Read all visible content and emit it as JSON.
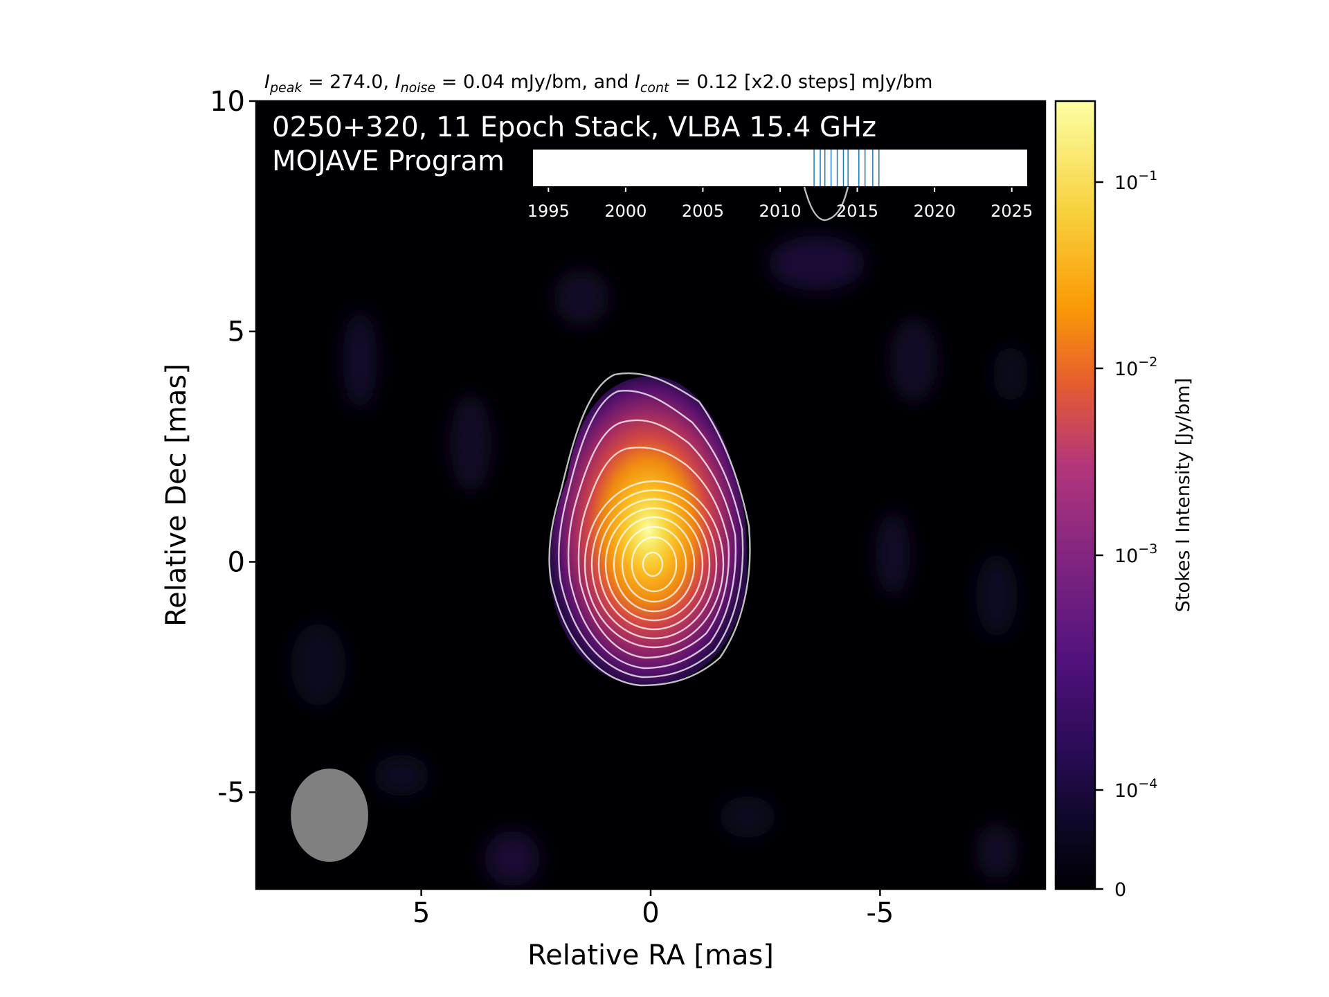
{
  "chart_data": {
    "type": "heatmap",
    "header": {
      "peak_sym": "I",
      "peak_sub": "peak",
      "peak_text": " = 274.0, ",
      "noise_sym": "I",
      "noise_sub": "noise",
      "noise_text": " = 0.04 mJy/bm, and ",
      "cont_sym": "I",
      "cont_sub": "cont",
      "cont_text": " = 0.12 [x2.0 steps] mJy/bm"
    },
    "title_line1": "0250+320, 11 Epoch Stack, VLBA 15.4 GHz",
    "title_line2": "MOJAVE Program",
    "xlabel": "Relative RA [mas]",
    "ylabel": "Relative Dec [mas]",
    "xlim": [
      8.6,
      -8.6
    ],
    "ylim": [
      -7.1,
      10
    ],
    "x_ticks": [
      {
        "value": 5,
        "label": "5"
      },
      {
        "value": 0,
        "label": "0"
      },
      {
        "value": -5,
        "label": "-5"
      }
    ],
    "y_ticks": [
      {
        "value": 10,
        "label": "10"
      },
      {
        "value": 5,
        "label": "5"
      },
      {
        "value": 0,
        "label": "0"
      },
      {
        "value": -5,
        "label": "-5"
      }
    ],
    "colorbar": {
      "label": "Stokes I Intensity [Jy/bm]",
      "scale": "log",
      "colormap": "inferno",
      "ticks": [
        {
          "value": 0.1,
          "base": "10",
          "exp": "−1"
        },
        {
          "value": 0.01,
          "base": "10",
          "exp": "−2"
        },
        {
          "value": 0.001,
          "base": "10",
          "exp": "−3"
        },
        {
          "value": 0.0001,
          "base": "10",
          "exp": "−4"
        },
        {
          "value": 0,
          "label": "0"
        }
      ],
      "vmin": 0,
      "vmax": 0.274
    },
    "source": {
      "peak_position": [
        0,
        0
      ],
      "contour_levels_mJy": [
        0.12,
        0.24,
        0.48,
        0.96,
        1.92,
        3.84,
        7.68,
        15.36,
        30.72,
        61.44,
        122.88,
        245.76
      ]
    },
    "beam": {
      "position": [
        7.0,
        -5.5
      ],
      "major_mas": 1.5,
      "minor_mas": 1.25,
      "pa_deg": 0,
      "color": "#808080"
    },
    "epoch_timeline": {
      "xlim": [
        1994,
        2026
      ],
      "ticks": [
        {
          "value": 1995,
          "label": "1995"
        },
        {
          "value": 2000,
          "label": "2000"
        },
        {
          "value": 2005,
          "label": "2005"
        },
        {
          "value": 2010,
          "label": "2010"
        },
        {
          "value": 2015,
          "label": "2015"
        },
        {
          "value": 2020,
          "label": "2020"
        },
        {
          "value": 2025,
          "label": "2025"
        }
      ],
      "epochs": [
        2012.2,
        2012.6,
        2012.9,
        2013.3,
        2013.7,
        2014.1,
        2014.4,
        2015.1,
        2015.5,
        2016.0,
        2016.4
      ],
      "epoch_color": "#1f77b4"
    },
    "colors": {
      "contour": "#ffffff",
      "axes": "#000000",
      "title": "#ffffff",
      "background": "#000004"
    }
  }
}
